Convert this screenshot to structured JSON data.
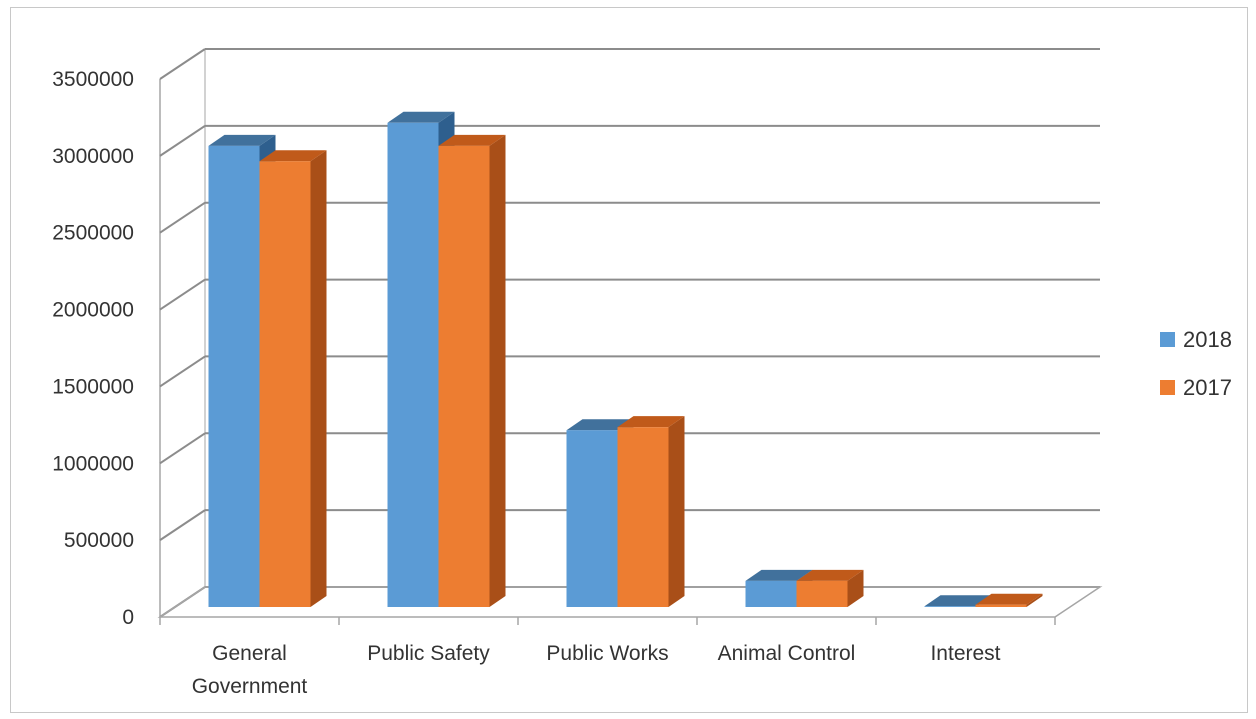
{
  "chart_data": {
    "type": "bar",
    "title": "",
    "xlabel": "",
    "ylabel": "",
    "categories": [
      [
        "General",
        "Government"
      ],
      [
        "Public Safety"
      ],
      [
        "Public Works"
      ],
      [
        "Animal Control"
      ],
      [
        "Interest"
      ]
    ],
    "series": [
      {
        "name": "2018",
        "values": [
          3000000,
          3150000,
          1150000,
          170000,
          5000
        ],
        "color": "#5b9bd5",
        "top_color": "#41719c",
        "side_color": "#2e5f8e"
      },
      {
        "name": "2017",
        "values": [
          2900000,
          3000000,
          1170000,
          170000,
          15000
        ],
        "color": "#ed7d31",
        "top_color": "#c05a1a",
        "side_color": "#a94f18"
      }
    ],
    "ylim": [
      0,
      3500000
    ],
    "yticks": [
      0,
      500000,
      1000000,
      1500000,
      2000000,
      2500000,
      3000000,
      3500000
    ],
    "ytick_labels": [
      "0",
      "500000",
      "1000000",
      "1500000",
      "2000000",
      "2500000",
      "3000000",
      "3500000"
    ],
    "grid": true,
    "legend_position": "right",
    "style": "3d-clustered-column",
    "gridline_color": "#8c8c8c"
  }
}
